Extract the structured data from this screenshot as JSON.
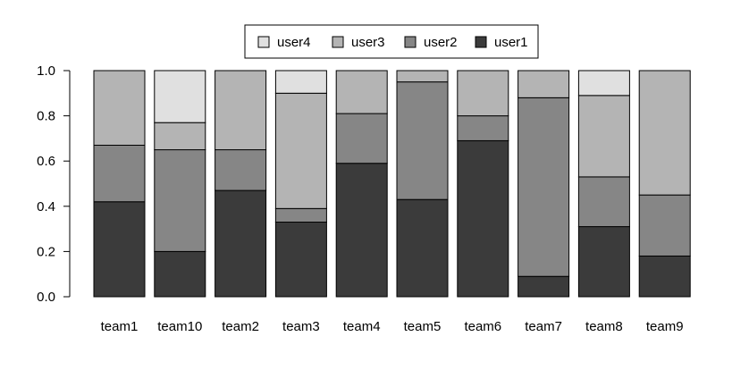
{
  "chart_data": {
    "type": "bar",
    "stacked": true,
    "categories": [
      "team1",
      "team10",
      "team2",
      "team3",
      "team4",
      "team5",
      "team6",
      "team7",
      "team8",
      "team9"
    ],
    "series": [
      {
        "name": "user1",
        "color": "#3b3b3b",
        "values": [
          0.42,
          0.2,
          0.47,
          0.33,
          0.59,
          0.43,
          0.69,
          0.09,
          0.31,
          0.18
        ]
      },
      {
        "name": "user2",
        "color": "#868686",
        "values": [
          0.25,
          0.45,
          0.18,
          0.06,
          0.22,
          0.52,
          0.11,
          0.79,
          0.22,
          0.27
        ]
      },
      {
        "name": "user3",
        "color": "#b4b4b4",
        "values": [
          0.33,
          0.12,
          0.35,
          0.51,
          0.19,
          0.05,
          0.2,
          0.12,
          0.36,
          0.55
        ]
      },
      {
        "name": "user4",
        "color": "#e0e0e0",
        "values": [
          0.0,
          0.23,
          0.0,
          0.1,
          0.0,
          0.0,
          0.0,
          0.0,
          0.11,
          0.0
        ]
      }
    ],
    "ylim": [
      0,
      1
    ],
    "yticks": [
      "0.0",
      "0.2",
      "0.4",
      "0.6",
      "0.8",
      "1.0"
    ],
    "legend_order": [
      "user4",
      "user3",
      "user2",
      "user1"
    ],
    "legend_position": "top-center",
    "grid": false
  }
}
